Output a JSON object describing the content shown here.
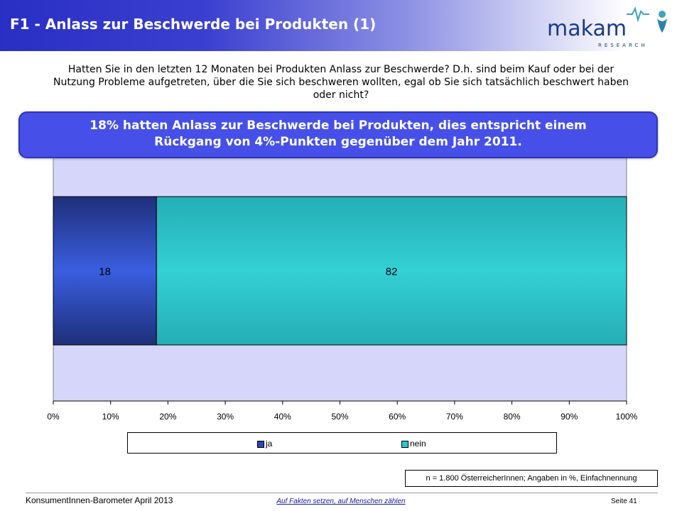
{
  "header": {
    "title": "F1 - Anlass zur Beschwerde bei Produkten (1)",
    "logo_text": "makam",
    "logo_subtext": "RESEARCH"
  },
  "question": "Hatten Sie in den letzten 12 Monaten bei Produkten Anlass zur Beschwerde? D.h. sind beim Kauf oder bei der Nutzung Probleme aufgetreten, über die Sie sich beschweren wollten, egal ob Sie sich tatsächlich beschwert haben oder nicht?",
  "callout": {
    "line1": "18% hatten Anlass zur Beschwerde bei Produkten, dies entspricht einem",
    "line2": "Rückgang von 4%-Punkten gegenüber dem Jahr 2011."
  },
  "chart_data": {
    "type": "bar",
    "orientation": "horizontal",
    "stacked": true,
    "categories": [
      ""
    ],
    "series": [
      {
        "name": "ja",
        "values": [
          18
        ],
        "color": "#2b45b8"
      },
      {
        "name": "nein",
        "values": [
          82
        ],
        "color": "#2ec7cc"
      }
    ],
    "xlim": [
      0,
      100
    ],
    "ticks": [
      "0%",
      "10%",
      "20%",
      "30%",
      "40%",
      "50%",
      "60%",
      "70%",
      "80%",
      "90%",
      "100%"
    ],
    "tick_values": [
      0,
      10,
      20,
      30,
      40,
      50,
      60,
      70,
      80,
      90,
      100
    ],
    "plot_background": "#d6d6fa",
    "grid": false,
    "legend_position": "bottom"
  },
  "note": "n = 1.800 ÖsterreicherInnen; Angaben in %, Einfachnennung",
  "footer": {
    "left": "KonsumentInnen-Barometer April 2013",
    "center": "Auf Fakten setzen, auf Menschen zählen",
    "right": "Seite 41"
  },
  "colors": {
    "header_blue": "#2a2fc4",
    "callout_blue": "#4650e8",
    "logo_blue": "#1a3a8a",
    "logo_teal": "#3aa6b8"
  }
}
